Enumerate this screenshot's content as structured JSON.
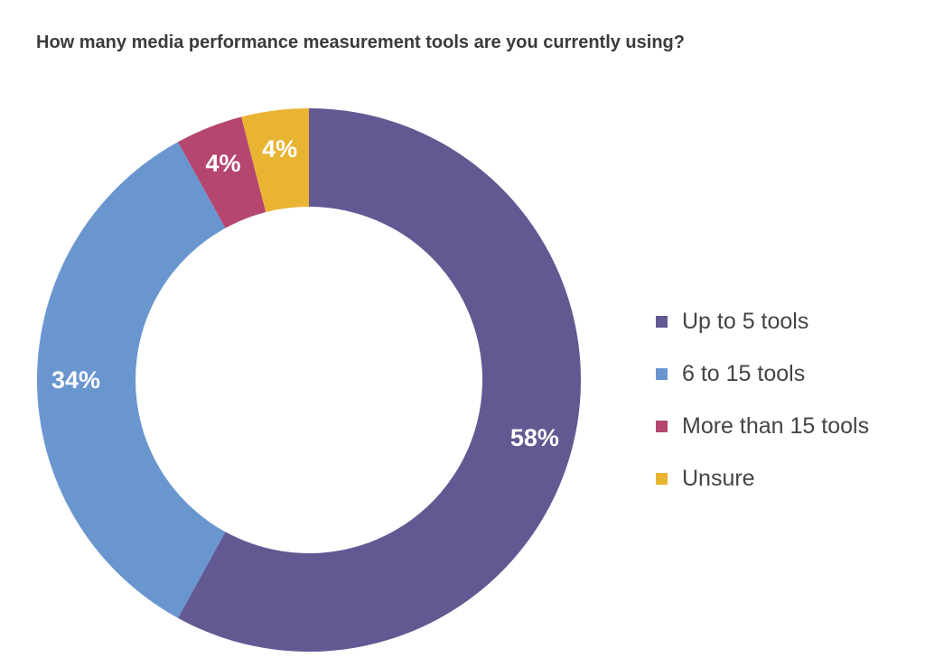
{
  "chart_data": {
    "type": "pie",
    "title": "How many media performance measurement tools are you currently using?",
    "legend_position": "right",
    "slices": [
      {
        "label": "Up to 5 tools",
        "value": 58,
        "display": "58%",
        "color": "#625892"
      },
      {
        "label": "6 to 15 tools",
        "value": 34,
        "display": "34%",
        "color": "#6a96d0"
      },
      {
        "label": "More than 15 tools",
        "value": 4,
        "display": "4%",
        "color": "#b5466f"
      },
      {
        "label": "Unsure",
        "value": 4,
        "display": "4%",
        "color": "#eab433"
      }
    ]
  }
}
